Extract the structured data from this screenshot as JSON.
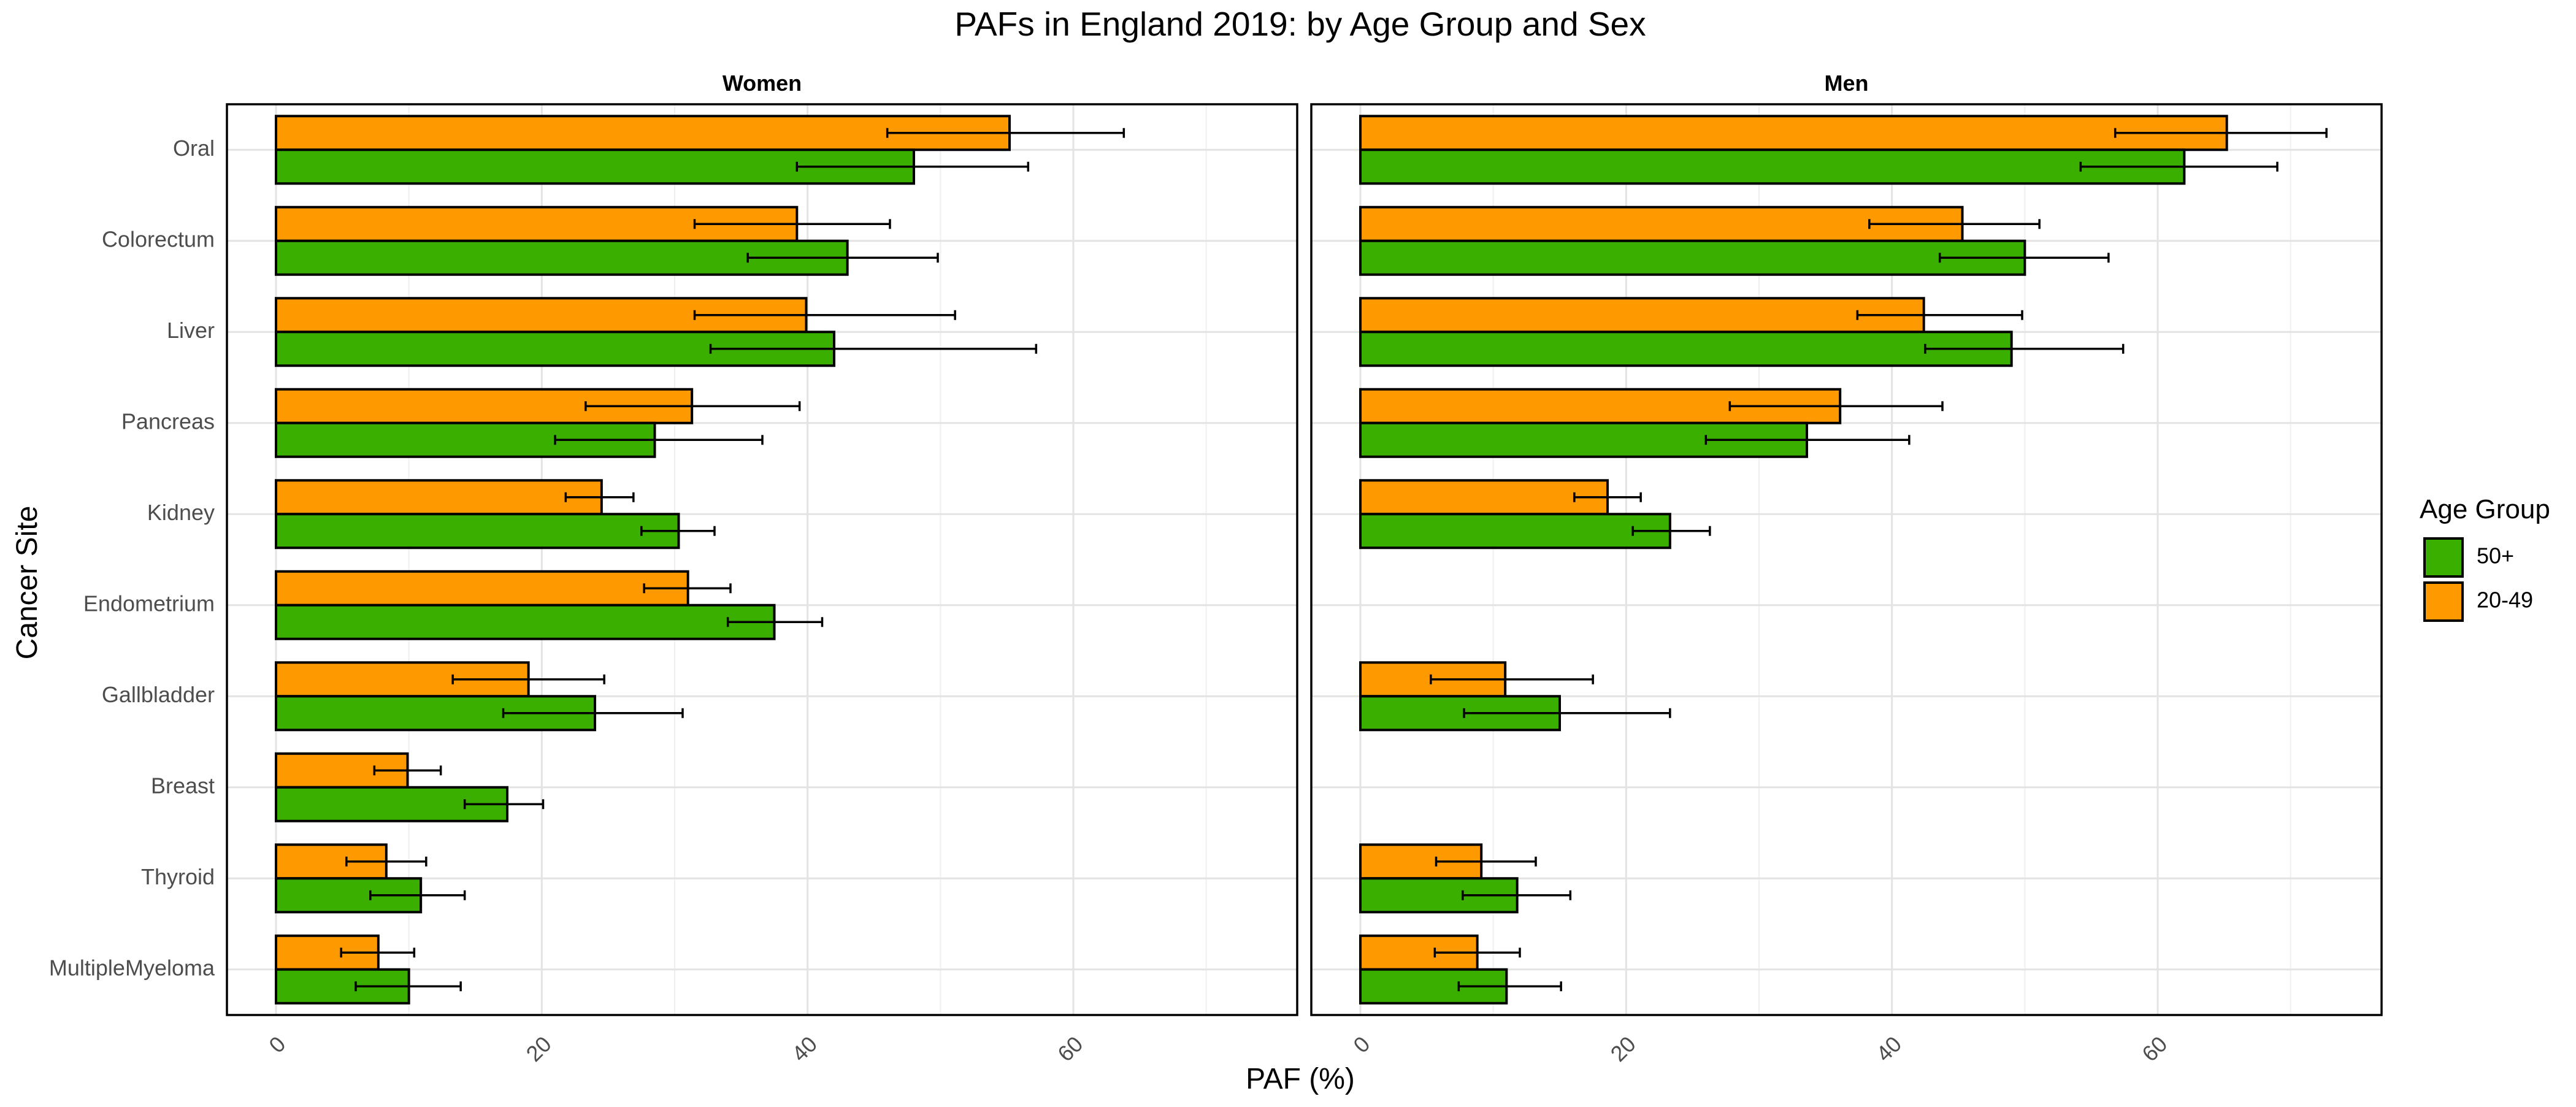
{
  "chart_data": {
    "type": "bar",
    "orientation": "horizontal",
    "title": "PAFs in England 2019: by Age Group and Sex",
    "xlabel": "PAF (%)",
    "ylabel": "Cancer Site",
    "xlim": [
      0,
      75
    ],
    "xticks": [
      0,
      20,
      40,
      60
    ],
    "grid": true,
    "legend": {
      "title": "Age Group",
      "placement": "right",
      "items": [
        {
          "label": "50+",
          "color": "#3aaf00"
        },
        {
          "label": "20-49",
          "color": "#ff9900"
        }
      ]
    },
    "categories": [
      "Oral",
      "Colorectum",
      "Liver",
      "Pancreas",
      "Kidney",
      "Endometrium",
      "Gallbladder",
      "Breast",
      "Thyroid",
      "MultipleMyeloma"
    ],
    "panels": [
      {
        "name": "Women",
        "series": [
          {
            "name": "20-49",
            "color": "#ff9900",
            "values": [
              55.2,
              39.2,
              39.9,
              31.3,
              24.5,
              31.0,
              19.0,
              9.9,
              8.3,
              7.7
            ],
            "lower": [
              46.0,
              31.5,
              31.5,
              23.3,
              21.8,
              27.7,
              13.3,
              7.4,
              5.3,
              4.9
            ],
            "upper": [
              63.8,
              46.2,
              51.1,
              39.4,
              26.9,
              34.2,
              24.7,
              12.4,
              11.3,
              10.4
            ]
          },
          {
            "name": "50+",
            "color": "#3aaf00",
            "values": [
              48.0,
              43.0,
              42.0,
              28.5,
              30.3,
              37.5,
              24.0,
              17.4,
              10.9,
              10.0
            ],
            "lower": [
              39.2,
              35.5,
              32.7,
              21.0,
              27.5,
              34.0,
              17.1,
              14.2,
              7.1,
              6.0
            ],
            "upper": [
              56.6,
              49.8,
              57.2,
              36.6,
              33.0,
              41.1,
              30.6,
              20.1,
              14.2,
              13.9
            ]
          }
        ]
      },
      {
        "name": "Men",
        "series": [
          {
            "name": "20-49",
            "color": "#ff9900",
            "values": [
              65.2,
              45.3,
              42.4,
              36.1,
              18.6,
              null,
              10.9,
              null,
              9.1,
              8.8
            ],
            "lower": [
              56.8,
              38.3,
              37.4,
              27.8,
              16.1,
              null,
              5.3,
              null,
              5.7,
              5.6
            ],
            "upper": [
              72.7,
              51.1,
              49.8,
              43.8,
              21.1,
              null,
              17.5,
              null,
              13.2,
              12.0
            ]
          },
          {
            "name": "50+",
            "color": "#3aaf00",
            "values": [
              62.0,
              50.0,
              49.0,
              33.6,
              23.3,
              null,
              15.0,
              null,
              11.8,
              11.0
            ],
            "lower": [
              54.2,
              43.6,
              42.5,
              26.0,
              20.5,
              null,
              7.8,
              null,
              7.7,
              7.4
            ],
            "upper": [
              69.0,
              56.3,
              57.4,
              41.3,
              26.3,
              null,
              23.3,
              null,
              15.8,
              15.1
            ]
          }
        ]
      }
    ]
  }
}
